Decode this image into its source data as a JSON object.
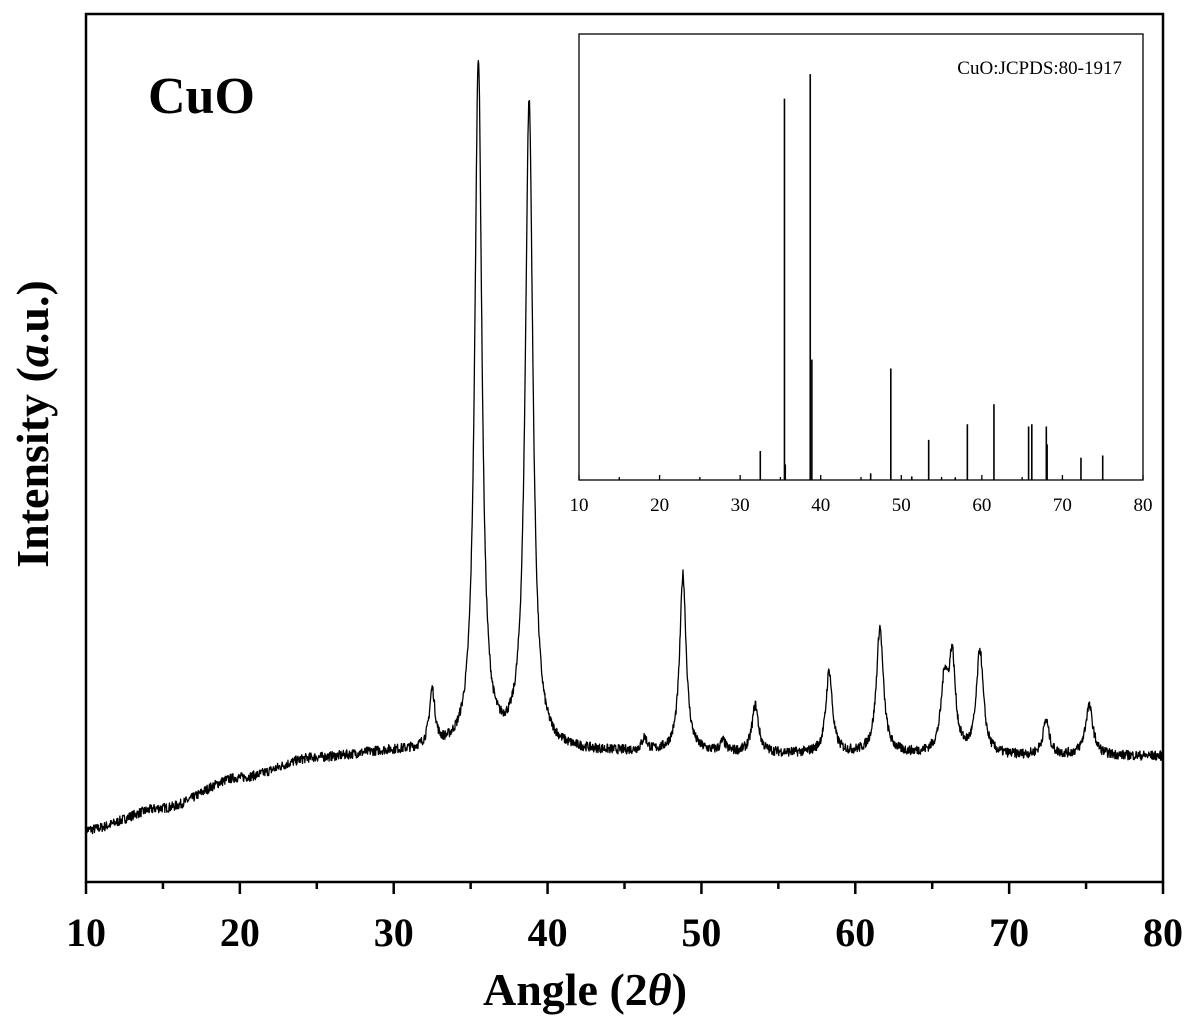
{
  "chart_data": [
    {
      "type": "line",
      "title": "",
      "annotation": "CuO",
      "xlabel": "Angle (2θ)",
      "xlabel_parts": [
        "Angle (2",
        "θ",
        ")"
      ],
      "ylabel": "Intensity (a.u.)",
      "ylabel_parts": [
        "Intensity (",
        "a",
        ".u.)"
      ],
      "xlim": [
        10,
        80
      ],
      "ylim": [
        0,
        100
      ],
      "xticks": [
        10,
        20,
        30,
        40,
        50,
        60,
        70,
        80
      ],
      "xtick_labels": [
        "10",
        "20",
        "30",
        "40",
        "50",
        "60",
        "70",
        "80"
      ],
      "yticks_shown": false,
      "grid": false,
      "legend": "none",
      "series": [
        {
          "baseline": [
            [
              10,
              6
            ],
            [
              15,
              8.5
            ],
            [
              20,
              12
            ],
            [
              25,
              14.3
            ],
            [
              30,
              15
            ],
            [
              35,
              15
            ],
            [
              40,
              15
            ],
            [
              50,
              14.8
            ],
            [
              60,
              14.7
            ],
            [
              70,
              14.5
            ],
            [
              80,
              14.5
            ]
          ],
          "peaks": [
            {
              "x": 32.5,
              "height": 6.5,
              "width": 0.22
            },
            {
              "x": 35.5,
              "height": 79.5,
              "width": 0.28
            },
            {
              "x": 38.8,
              "height": 74.5,
              "width": 0.3
            },
            {
              "x": 46.3,
              "height": 1.5,
              "width": 0.2
            },
            {
              "x": 48.8,
              "height": 20.5,
              "width": 0.25
            },
            {
              "x": 51.4,
              "height": 1.2,
              "width": 0.2
            },
            {
              "x": 53.5,
              "height": 5.5,
              "width": 0.25
            },
            {
              "x": 58.3,
              "height": 9.5,
              "width": 0.25
            },
            {
              "x": 61.6,
              "height": 14.5,
              "width": 0.27
            },
            {
              "x": 65.8,
              "height": 8,
              "width": 0.27
            },
            {
              "x": 66.3,
              "height": 10.5,
              "width": 0.25
            },
            {
              "x": 68.1,
              "height": 12,
              "width": 0.27
            },
            {
              "x": 72.4,
              "height": 4,
              "width": 0.25
            },
            {
              "x": 75.2,
              "height": 5.7,
              "width": 0.3
            }
          ]
        }
      ]
    },
    {
      "type": "bar",
      "title": "",
      "annotation": "CuO:JCPDS:80-1917",
      "xlim": [
        10,
        80
      ],
      "ylim": [
        0,
        100
      ],
      "xticks": [
        10,
        20,
        30,
        40,
        50,
        60,
        70,
        80
      ],
      "xtick_labels": [
        "10",
        "20",
        "30",
        "40",
        "50",
        "60",
        "70",
        "80"
      ],
      "grid": false,
      "legend": "none",
      "x": [
        32.5,
        35.5,
        35.6,
        38.7,
        38.9,
        46.2,
        48.7,
        51.3,
        53.4,
        56.7,
        58.2,
        61.5,
        65.8,
        66.2,
        68.0,
        68.1,
        72.3,
        75.0
      ],
      "values": [
        6.5,
        85.5,
        3.5,
        91,
        27,
        1.5,
        25,
        0.8,
        9,
        0.6,
        12.5,
        17,
        12,
        12.5,
        12,
        8,
        5,
        5.5
      ]
    }
  ]
}
